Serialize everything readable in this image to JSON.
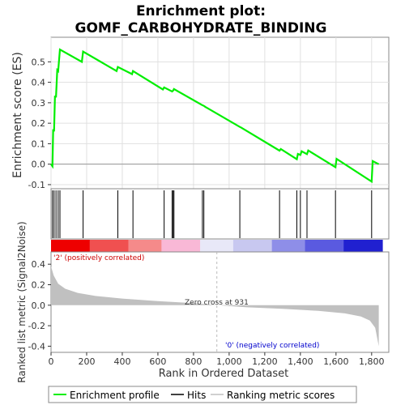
{
  "chart_data": {
    "type": "line",
    "title_line1": "Enrichment plot:",
    "title_line2": "GOMF_CARBOHYDRATE_BINDING",
    "es_ylabel": "Enrichment score (ES)",
    "metric_ylabel": "Ranked list metric (Signal2Noise)",
    "xlabel": "Rank in Ordered Dataset",
    "xlim": [
      0,
      1860
    ],
    "es_ylim": [
      -0.12,
      0.62
    ],
    "metric_ylim": [
      -0.46,
      0.52
    ],
    "x_ticks": [
      "0",
      "200",
      "400",
      "600",
      "800",
      "1,000",
      "1,200",
      "1,400",
      "1,600",
      "1,800"
    ],
    "x_tick_values": [
      0,
      200,
      400,
      600,
      800,
      1000,
      1200,
      1400,
      1600,
      1800
    ],
    "es_ticks": [
      "-0.1",
      "0.0",
      "0.1",
      "0.2",
      "0.3",
      "0.4",
      "0.5"
    ],
    "es_tick_values": [
      -0.1,
      0.0,
      0.1,
      0.2,
      0.3,
      0.4,
      0.5
    ],
    "metric_ticks": [
      "-0.4",
      "-0.2",
      "0.0",
      "0.2",
      "0.4"
    ],
    "metric_tick_values": [
      -0.4,
      -0.2,
      0.0,
      0.2,
      0.4
    ],
    "enrichment_profile": {
      "x": [
        0,
        8,
        12,
        17,
        22,
        28,
        35,
        40,
        50,
        173,
        180,
        368,
        375,
        455,
        460,
        628,
        635,
        680,
        686,
        690,
        850,
        858,
        866,
        1060,
        1067,
        1283,
        1290,
        1380,
        1386,
        1400,
        1407,
        1437,
        1444,
        1597,
        1603,
        1800,
        1806,
        1840
      ],
      "y": [
        0.0,
        -0.01,
        0.17,
        0.16,
        0.33,
        0.33,
        0.46,
        0.455,
        0.56,
        0.5,
        0.55,
        0.455,
        0.475,
        0.44,
        0.455,
        0.365,
        0.375,
        0.355,
        0.36,
        0.367,
        0.288,
        0.285,
        0.28,
        0.182,
        0.179,
        0.066,
        0.074,
        0.024,
        0.05,
        0.045,
        0.063,
        0.049,
        0.067,
        -0.015,
        0.026,
        -0.085,
        0.015,
        0.0
      ]
    },
    "hits": [
      8,
      17,
      28,
      40,
      50,
      180,
      375,
      460,
      635,
      680,
      686,
      690,
      850,
      858,
      1060,
      1283,
      1380,
      1400,
      1437,
      1597,
      1800
    ],
    "zero_cross_label": "Zero cross at 931",
    "zero_cross_x": 931,
    "pos_label": "'2' (positively correlated)",
    "neg_label": "'0' (negatively correlated)",
    "metric_curve": {
      "x": [
        0,
        15,
        40,
        80,
        150,
        250,
        400,
        600,
        800,
        931,
        1100,
        1300,
        1500,
        1650,
        1740,
        1790,
        1820,
        1840
      ],
      "y": [
        0.38,
        0.29,
        0.21,
        0.16,
        0.12,
        0.09,
        0.065,
        0.04,
        0.02,
        0.0,
        -0.02,
        -0.035,
        -0.055,
        -0.08,
        -0.11,
        -0.15,
        -0.22,
        -0.4
      ]
    },
    "legend": [
      {
        "label": "Enrichment profile",
        "color": "#00ee00"
      },
      {
        "label": "Hits",
        "color": "#000000"
      },
      {
        "label": "Ranking metric scores",
        "color": "#c0c0c0"
      }
    ],
    "colors": {
      "profile": "#00ee00",
      "metric_fill": "#c0c0c0",
      "pos_text": "#cc0000",
      "neg_text": "#0000cc",
      "heat": [
        "#ee0000",
        "#f05050",
        "#f58a8a",
        "#f9b8d6",
        "#e8e8f8",
        "#c8c8f0",
        "#8e8ee8",
        "#5a5ae0",
        "#2020d0"
      ]
    }
  }
}
